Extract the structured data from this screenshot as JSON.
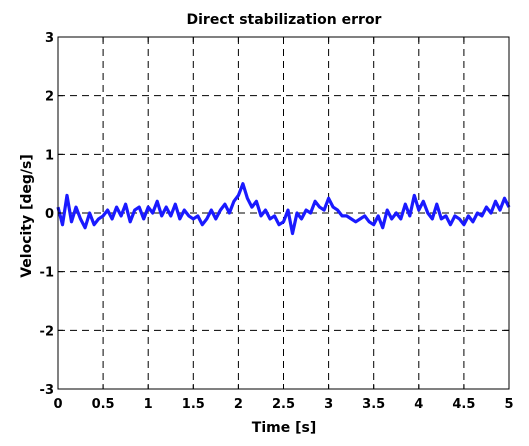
{
  "chart_data": {
    "type": "line",
    "title": "Direct stabilization error",
    "xlabel": "Time [s]",
    "ylabel": "Velocity [deg/s]",
    "xlim": [
      0,
      5
    ],
    "ylim": [
      -3,
      3
    ],
    "x_ticks": [
      0,
      0.5,
      1,
      1.5,
      2,
      2.5,
      3,
      3.5,
      4,
      4.5,
      5
    ],
    "x_tick_labels": [
      "0",
      "0.5",
      "1",
      "1.5",
      "2",
      "2.5",
      "3",
      "3.5",
      "4",
      "4.5",
      "5"
    ],
    "y_ticks": [
      -3,
      -2,
      -1,
      0,
      1,
      2,
      3
    ],
    "y_tick_labels": [
      "-3",
      "-2",
      "-1",
      "0",
      "1",
      "2",
      "3"
    ],
    "grid": true,
    "series": [
      {
        "color": "#1a1aff",
        "x": [
          0.0,
          0.05,
          0.1,
          0.15,
          0.2,
          0.25,
          0.3,
          0.35,
          0.4,
          0.45,
          0.5,
          0.55,
          0.6,
          0.65,
          0.7,
          0.75,
          0.8,
          0.85,
          0.9,
          0.95,
          1.0,
          1.05,
          1.1,
          1.15,
          1.2,
          1.25,
          1.3,
          1.35,
          1.4,
          1.45,
          1.5,
          1.55,
          1.6,
          1.65,
          1.7,
          1.75,
          1.8,
          1.85,
          1.9,
          1.95,
          2.0,
          2.05,
          2.1,
          2.15,
          2.2,
          2.25,
          2.3,
          2.35,
          2.4,
          2.45,
          2.5,
          2.55,
          2.6,
          2.65,
          2.7,
          2.75,
          2.8,
          2.85,
          2.9,
          2.95,
          3.0,
          3.05,
          3.1,
          3.15,
          3.2,
          3.25,
          3.3,
          3.35,
          3.4,
          3.45,
          3.5,
          3.55,
          3.6,
          3.65,
          3.7,
          3.75,
          3.8,
          3.85,
          3.9,
          3.95,
          4.0,
          4.05,
          4.1,
          4.15,
          4.2,
          4.25,
          4.3,
          4.35,
          4.4,
          4.45,
          4.5,
          4.55,
          4.6,
          4.65,
          4.7,
          4.75,
          4.8,
          4.85,
          4.9,
          4.95,
          5.0
        ],
        "y": [
          0.1,
          -0.2,
          0.3,
          -0.15,
          0.1,
          -0.1,
          -0.25,
          0.0,
          -0.2,
          -0.1,
          -0.05,
          0.05,
          -0.1,
          0.1,
          -0.05,
          0.15,
          -0.15,
          0.05,
          0.1,
          -0.1,
          0.1,
          0.0,
          0.2,
          -0.05,
          0.1,
          -0.05,
          0.15,
          -0.1,
          0.05,
          -0.05,
          -0.1,
          -0.05,
          -0.2,
          -0.1,
          0.05,
          -0.1,
          0.05,
          0.15,
          0.0,
          0.2,
          0.3,
          0.5,
          0.25,
          0.1,
          0.2,
          -0.05,
          0.05,
          -0.1,
          -0.05,
          -0.2,
          -0.15,
          0.05,
          -0.35,
          0.0,
          -0.1,
          0.05,
          0.0,
          0.2,
          0.1,
          0.05,
          0.25,
          0.1,
          0.05,
          -0.05,
          -0.05,
          -0.1,
          -0.15,
          -0.1,
          -0.05,
          -0.15,
          -0.2,
          -0.05,
          -0.25,
          0.05,
          -0.1,
          0.0,
          -0.1,
          0.15,
          -0.05,
          0.3,
          0.05,
          0.2,
          0.0,
          -0.1,
          0.15,
          -0.1,
          -0.05,
          -0.2,
          -0.05,
          -0.1,
          -0.2,
          -0.05,
          -0.15,
          0.0,
          -0.05,
          0.1,
          0.0,
          0.2,
          0.05,
          0.25,
          0.1
        ]
      }
    ]
  }
}
